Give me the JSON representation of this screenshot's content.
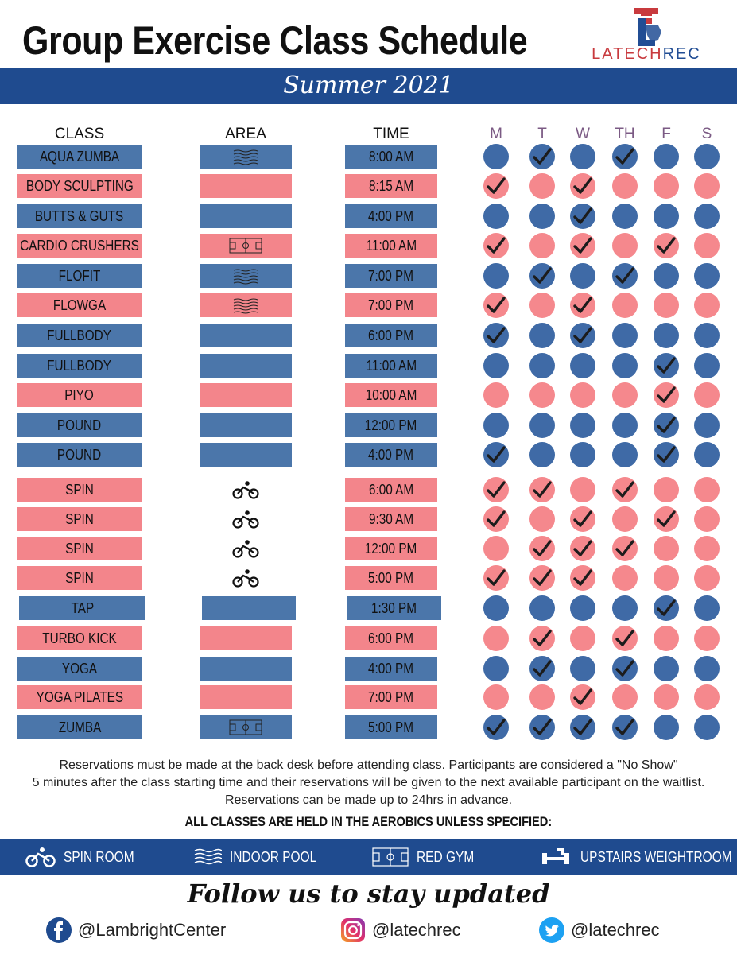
{
  "title": "Group Exercise Class Schedule",
  "logo": {
    "brand_a": "LATECH",
    "brand_b": "REC"
  },
  "season": "Summer 2021",
  "headers": {
    "class": "CLASS",
    "area": "AREA",
    "time": "TIME"
  },
  "days": [
    "M",
    "T",
    "W",
    "TH",
    "F",
    "S"
  ],
  "colors": {
    "blue": "#4b76aa",
    "pink": "#f3858b",
    "navy": "#1f4b8f"
  },
  "classes": [
    {
      "name": "AQUA ZUMBA",
      "area": "indoor-pool",
      "time": "8:00 AM",
      "color": "blue",
      "days": [
        0,
        1,
        0,
        1,
        0,
        0
      ]
    },
    {
      "name": "BODY SCULPTING",
      "area": "",
      "time": "8:15 AM",
      "color": "pink",
      "days": [
        1,
        0,
        1,
        0,
        0,
        0
      ]
    },
    {
      "name": "BUTTS & GUTS",
      "area": "",
      "time": "4:00 PM",
      "color": "blue",
      "days": [
        0,
        0,
        1,
        0,
        0,
        0
      ]
    },
    {
      "name": "CARDIO CRUSHERS",
      "area": "red-gym",
      "time": "11:00 AM",
      "color": "pink",
      "days": [
        1,
        0,
        1,
        0,
        1,
        0
      ]
    },
    {
      "name": "FLOFIT",
      "area": "indoor-pool",
      "time": "7:00 PM",
      "color": "blue",
      "days": [
        0,
        1,
        0,
        1,
        0,
        0
      ]
    },
    {
      "name": "FLOWGA",
      "area": "indoor-pool",
      "time": "7:00 PM",
      "color": "pink",
      "days": [
        1,
        0,
        1,
        0,
        0,
        0
      ]
    },
    {
      "name": "FULLBODY",
      "area": "",
      "time": "6:00 PM",
      "color": "blue",
      "days": [
        1,
        0,
        1,
        0,
        0,
        0
      ]
    },
    {
      "name": "FULLBODY",
      "area": "",
      "time": "11:00 AM",
      "color": "blue",
      "days": [
        0,
        0,
        0,
        0,
        1,
        0
      ]
    },
    {
      "name": "PIYO",
      "area": "",
      "time": "10:00 AM",
      "color": "pink",
      "days": [
        0,
        0,
        0,
        0,
        1,
        0
      ]
    },
    {
      "name": "POUND",
      "area": "",
      "time": "12:00 PM",
      "color": "blue",
      "days": [
        0,
        0,
        0,
        0,
        1,
        0
      ]
    },
    {
      "name": "POUND",
      "area": "",
      "time": "4:00 PM",
      "color": "blue",
      "days": [
        1,
        0,
        0,
        0,
        1,
        0
      ]
    },
    {
      "name": "SPIN",
      "area": "spin-room",
      "time": "6:00 AM",
      "color": "pink",
      "days": [
        1,
        1,
        0,
        1,
        0,
        0
      ]
    },
    {
      "name": "SPIN",
      "area": "spin-room",
      "time": "9:30 AM",
      "color": "pink",
      "days": [
        1,
        0,
        1,
        0,
        1,
        0
      ]
    },
    {
      "name": "SPIN",
      "area": "spin-room",
      "time": "12:00 PM",
      "color": "pink",
      "days": [
        0,
        1,
        1,
        1,
        0,
        0
      ]
    },
    {
      "name": "SPIN",
      "area": "spin-room",
      "time": "5:00 PM",
      "color": "pink",
      "days": [
        1,
        1,
        1,
        0,
        0,
        0
      ]
    },
    {
      "name": "TAP",
      "area": "",
      "time": "1:30 PM",
      "color": "blue",
      "days": [
        0,
        0,
        0,
        0,
        1,
        0
      ]
    },
    {
      "name": "TURBO KICK",
      "area": "",
      "time": "6:00 PM",
      "color": "pink",
      "days": [
        0,
        1,
        0,
        1,
        0,
        0
      ]
    },
    {
      "name": "YOGA",
      "area": "",
      "time": "4:00 PM",
      "color": "blue",
      "days": [
        0,
        1,
        0,
        1,
        0,
        0
      ]
    },
    {
      "name": "YOGA PILATES",
      "area": "",
      "time": "7:00 PM",
      "color": "pink",
      "days": [
        0,
        0,
        1,
        0,
        0,
        0
      ]
    },
    {
      "name": "ZUMBA",
      "area": "red-gym",
      "time": "5:00 PM",
      "color": "blue",
      "days": [
        1,
        1,
        1,
        1,
        0,
        0
      ]
    }
  ],
  "note": {
    "line1": "Reservations must be made at the back desk before attending class. Participants are considered a \"No Show\"",
    "line2": "5 minutes after the class starting time and their reservations will be given to the next available participant on the waitlist.",
    "line3": "Reservations can be made up to 24hrs in advance."
  },
  "all_classes_note": "ALL CLASSES ARE HELD IN THE AEROBICS UNLESS SPECIFIED:",
  "legend": [
    {
      "icon": "bicycle-icon",
      "label": "SPIN ROOM"
    },
    {
      "icon": "waves-icon",
      "label": "INDOOR POOL"
    },
    {
      "icon": "basketball-court-icon",
      "label": "RED GYM"
    },
    {
      "icon": "dumbbell-icon",
      "label": "UPSTAIRS WEIGHTROOM"
    }
  ],
  "follow": "Follow us to stay updated",
  "social": {
    "facebook": "@LambrightCenter",
    "instagram": "@latechrec",
    "twitter": "@latechrec"
  }
}
